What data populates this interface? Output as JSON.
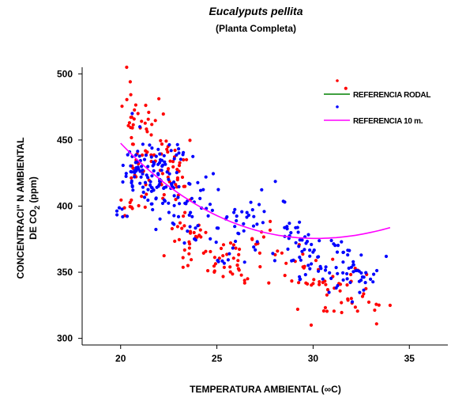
{
  "chart_data": {
    "type": "scatter",
    "title": "Eucalyputs pellita",
    "subtitle": "(Planta Completa)",
    "xlabel": "TEMPERATURA AMBIENTAL (∞C)",
    "ylabel_line1": "CONCENTRACI\" N AMBIENTAL",
    "ylabel_line2_prefix": "DE CO",
    "ylabel_line2_sub": "2",
    "ylabel_line2_suffix": " (ppm)",
    "xlim": [
      18,
      37
    ],
    "ylim": [
      295,
      505
    ],
    "xticks": [
      "20",
      "25",
      "30",
      "35"
    ],
    "yticks": [
      "300",
      "350",
      "400",
      "450",
      "500"
    ],
    "xtick_values": [
      20,
      25,
      30,
      35
    ],
    "ytick_values": [
      300,
      350,
      400,
      450,
      500
    ],
    "grid": false,
    "legend_position": "top-right",
    "series": [
      {
        "name": "REFERENCIA RODAL",
        "marker_color": "#ff0000",
        "line_color": "#008000",
        "fit_coefficients": [
          2017.57,
          -130.72,
          4.5714,
          -0.05556
        ],
        "fit_range": [
          20,
          34
        ],
        "clusters": [
          {
            "center": [
              20.3,
              401
            ],
            "spread": [
              0.25,
              5
            ],
            "count": 8
          },
          {
            "center": [
              20.6,
              455
            ],
            "spread": [
              0.2,
              22
            ],
            "count": 20
          },
          {
            "center": [
              21.0,
              425
            ],
            "spread": [
              0.35,
              12
            ],
            "count": 18
          },
          {
            "center": [
              21.8,
              455
            ],
            "spread": [
              0.4,
              12
            ],
            "count": 20
          },
          {
            "center": [
              22.3,
              420
            ],
            "spread": [
              0.5,
              14
            ],
            "count": 20
          },
          {
            "center": [
              23.1,
              432
            ],
            "spread": [
              0.3,
              10
            ],
            "count": 16
          },
          {
            "center": [
              23.3,
              375
            ],
            "spread": [
              0.4,
              12
            ],
            "count": 20
          },
          {
            "center": [
              24.0,
              378
            ],
            "spread": [
              0.3,
              8
            ],
            "count": 10
          },
          {
            "center": [
              25.5,
              357
            ],
            "spread": [
              0.6,
              7
            ],
            "count": 24
          },
          {
            "center": [
              26.4,
              355
            ],
            "spread": [
              0.4,
              8
            ],
            "count": 10
          },
          {
            "center": [
              27.5,
              368
            ],
            "spread": [
              0.5,
              10
            ],
            "count": 10
          },
          {
            "center": [
              28.5,
              355
            ],
            "spread": [
              0.5,
              8
            ],
            "count": 8
          },
          {
            "center": [
              30.3,
              345
            ],
            "spread": [
              0.7,
              10
            ],
            "count": 18
          },
          {
            "center": [
              31.5,
              335
            ],
            "spread": [
              0.6,
              10
            ],
            "count": 22
          },
          {
            "center": [
              32.5,
              330
            ],
            "spread": [
              0.6,
              10
            ],
            "count": 10
          }
        ],
        "points": [
          [
            20.5,
            494
          ],
          [
            31.7,
            489
          ],
          [
            20.9,
            470
          ],
          [
            33.3,
            311
          ],
          [
            34.0,
            325
          ],
          [
            29.2,
            322
          ],
          [
            29.9,
            310
          ]
        ]
      },
      {
        "name": "REFERENCIA 10 m.",
        "marker_color": "#0000ff",
        "line_color": "#ff00ff",
        "fit_coefficients": [
          1191.59,
          -63.2,
          1.5,
          -0.01
        ],
        "fit_range": [
          20,
          34
        ],
        "clusters": [
          {
            "center": [
              20.0,
              398
            ],
            "spread": [
              0.2,
              4
            ],
            "count": 6
          },
          {
            "center": [
              20.5,
              430
            ],
            "spread": [
              0.25,
              10
            ],
            "count": 12
          },
          {
            "center": [
              21.2,
              425
            ],
            "spread": [
              0.5,
              10
            ],
            "count": 45
          },
          {
            "center": [
              22.0,
              420
            ],
            "spread": [
              0.5,
              12
            ],
            "count": 40
          },
          {
            "center": [
              22.6,
              398
            ],
            "spread": [
              0.6,
              12
            ],
            "count": 25
          },
          {
            "center": [
              23.0,
              440
            ],
            "spread": [
              0.3,
              5
            ],
            "count": 10
          },
          {
            "center": [
              23.8,
              395
            ],
            "spread": [
              0.4,
              12
            ],
            "count": 15
          },
          {
            "center": [
              24.5,
              405
            ],
            "spread": [
              0.4,
              10
            ],
            "count": 10
          },
          {
            "center": [
              25.5,
              375
            ],
            "spread": [
              0.6,
              12
            ],
            "count": 20
          },
          {
            "center": [
              26.5,
              390
            ],
            "spread": [
              0.5,
              10
            ],
            "count": 12
          },
          {
            "center": [
              27.5,
              395
            ],
            "spread": [
              0.5,
              12
            ],
            "count": 12
          },
          {
            "center": [
              28.7,
              375
            ],
            "spread": [
              0.6,
              10
            ],
            "count": 15
          },
          {
            "center": [
              29.8,
              365
            ],
            "spread": [
              0.6,
              12
            ],
            "count": 22
          },
          {
            "center": [
              30.8,
              360
            ],
            "spread": [
              0.6,
              10
            ],
            "count": 25
          },
          {
            "center": [
              31.8,
              350
            ],
            "spread": [
              0.6,
              12
            ],
            "count": 22
          },
          {
            "center": [
              32.8,
              345
            ],
            "spread": [
              0.5,
              8
            ],
            "count": 12
          }
        ],
        "points": [
          [
            20.6,
            470
          ],
          [
            21.0,
            460
          ],
          [
            33.8,
            362
          ],
          [
            32.5,
            363
          ]
        ]
      }
    ]
  }
}
